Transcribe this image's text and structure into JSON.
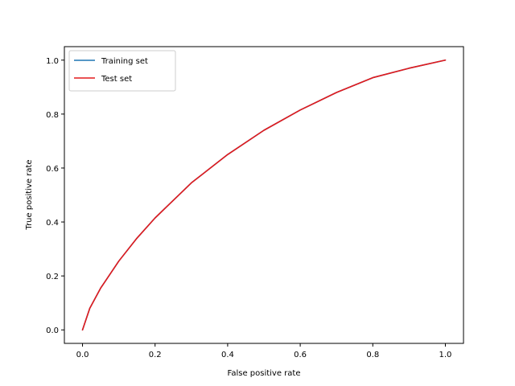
{
  "chart_data": {
    "type": "line",
    "xlabel": "False positive rate",
    "ylabel": "True positive rate",
    "xlim": [
      -0.05,
      1.05
    ],
    "ylim": [
      -0.05,
      1.05
    ],
    "xticks": [
      0.0,
      0.2,
      0.4,
      0.6,
      0.8,
      1.0
    ],
    "yticks": [
      0.0,
      0.2,
      0.4,
      0.6,
      0.8,
      1.0
    ],
    "x_tick_labels": [
      "0.0",
      "0.2",
      "0.4",
      "0.6",
      "0.8",
      "1.0"
    ],
    "y_tick_labels": [
      "0.0",
      "0.2",
      "0.4",
      "0.6",
      "0.8",
      "1.0"
    ],
    "grid": false,
    "legend_position": "top-left",
    "series": [
      {
        "name": "Training set",
        "color": "#1f77b4",
        "x": [
          0.0,
          0.02,
          0.05,
          0.1,
          0.15,
          0.2,
          0.3,
          0.4,
          0.5,
          0.6,
          0.7,
          0.8,
          0.9,
          1.0
        ],
        "y": [
          0.0,
          0.08,
          0.155,
          0.255,
          0.34,
          0.415,
          0.545,
          0.65,
          0.74,
          0.815,
          0.88,
          0.935,
          0.97,
          1.0
        ]
      },
      {
        "name": "Test set",
        "color": "#e31a1c",
        "x": [
          0.0,
          0.02,
          0.05,
          0.1,
          0.15,
          0.2,
          0.3,
          0.4,
          0.5,
          0.6,
          0.7,
          0.8,
          0.9,
          1.0
        ],
        "y": [
          0.0,
          0.08,
          0.155,
          0.255,
          0.34,
          0.415,
          0.545,
          0.65,
          0.74,
          0.815,
          0.88,
          0.935,
          0.97,
          1.0
        ]
      }
    ]
  }
}
